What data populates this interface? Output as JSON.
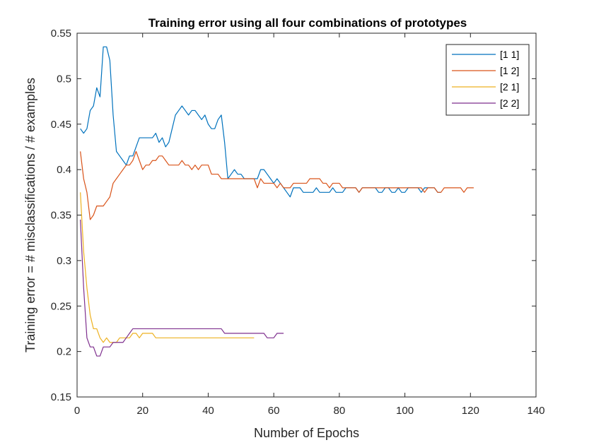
{
  "chart_data": {
    "type": "line",
    "title": "Training error using all four combinations of prototypes",
    "xlabel": "Number of Epochs",
    "ylabel": "Training error = # misclassifications / # examples",
    "xlim": [
      0,
      140
    ],
    "ylim": [
      0.15,
      0.55
    ],
    "xticks": [
      0,
      20,
      40,
      60,
      80,
      100,
      120,
      140
    ],
    "yticks": [
      0.15,
      0.2,
      0.25,
      0.3,
      0.35,
      0.4,
      0.45,
      0.5,
      0.55
    ],
    "xtick_labels": [
      "0",
      "20",
      "40",
      "60",
      "80",
      "100",
      "120",
      "140"
    ],
    "ytick_labels": [
      "0.15",
      "0.2",
      "0.25",
      "0.3",
      "0.35",
      "0.4",
      "0.45",
      "0.5",
      "0.55"
    ],
    "grid": false,
    "legend_position": "top-right",
    "series": [
      {
        "name": "[1 1]",
        "color": "#0072BD",
        "x": [
          1,
          2,
          3,
          4,
          5,
          6,
          7,
          8,
          9,
          10,
          11,
          12,
          13,
          14,
          15,
          16,
          17,
          18,
          19,
          20,
          21,
          22,
          23,
          24,
          25,
          26,
          27,
          28,
          29,
          30,
          31,
          32,
          33,
          34,
          35,
          36,
          37,
          38,
          39,
          40,
          41,
          42,
          43,
          44,
          45,
          46,
          47,
          48,
          49,
          50,
          51,
          52,
          53,
          54,
          55,
          56,
          57,
          58,
          59,
          60,
          61,
          62,
          63,
          64,
          65,
          66,
          67,
          68,
          69,
          70,
          71,
          72,
          73,
          74,
          75,
          76,
          77,
          78,
          79,
          80,
          81,
          82,
          83,
          84,
          85,
          86,
          87,
          88,
          89,
          90,
          91,
          92,
          93,
          94,
          95,
          96,
          97,
          98,
          99,
          100,
          101,
          102,
          103,
          104,
          105,
          106,
          107,
          108,
          109,
          110,
          111
        ],
        "values": [
          0.445,
          0.44,
          0.445,
          0.465,
          0.47,
          0.49,
          0.48,
          0.535,
          0.535,
          0.52,
          0.46,
          0.42,
          0.415,
          0.41,
          0.405,
          0.415,
          0.415,
          0.425,
          0.435,
          0.435,
          0.435,
          0.435,
          0.435,
          0.44,
          0.43,
          0.435,
          0.425,
          0.43,
          0.445,
          0.46,
          0.465,
          0.47,
          0.465,
          0.46,
          0.465,
          0.465,
          0.46,
          0.455,
          0.46,
          0.45,
          0.445,
          0.445,
          0.455,
          0.46,
          0.43,
          0.39,
          0.395,
          0.4,
          0.395,
          0.395,
          0.39,
          0.39,
          0.39,
          0.39,
          0.39,
          0.4,
          0.4,
          0.395,
          0.39,
          0.385,
          0.39,
          0.385,
          0.38,
          0.375,
          0.37,
          0.38,
          0.38,
          0.38,
          0.375,
          0.375,
          0.375,
          0.375,
          0.38,
          0.375,
          0.375,
          0.375,
          0.375,
          0.38,
          0.375,
          0.375,
          0.375,
          0.38,
          0.38,
          0.38,
          0.38,
          0.375,
          0.38,
          0.38,
          0.38,
          0.38,
          0.38,
          0.375,
          0.375,
          0.38,
          0.38,
          0.375,
          0.375,
          0.38,
          0.375,
          0.375,
          0.38,
          0.38,
          0.38,
          0.38,
          0.375,
          0.38,
          0.38,
          0.38,
          0.38,
          0.375,
          0.375
        ]
      },
      {
        "name": "[1 2]",
        "color": "#D95319",
        "x": [
          1,
          2,
          3,
          4,
          5,
          6,
          7,
          8,
          9,
          10,
          11,
          12,
          13,
          14,
          15,
          16,
          17,
          18,
          19,
          20,
          21,
          22,
          23,
          24,
          25,
          26,
          27,
          28,
          29,
          30,
          31,
          32,
          33,
          34,
          35,
          36,
          37,
          38,
          39,
          40,
          41,
          42,
          43,
          44,
          45,
          46,
          47,
          48,
          49,
          50,
          51,
          52,
          53,
          54,
          55,
          56,
          57,
          58,
          59,
          60,
          61,
          62,
          63,
          64,
          65,
          66,
          67,
          68,
          69,
          70,
          71,
          72,
          73,
          74,
          75,
          76,
          77,
          78,
          79,
          80,
          81,
          82,
          83,
          84,
          85,
          86,
          87,
          88,
          89,
          90,
          91,
          92,
          93,
          94,
          95,
          96,
          97,
          98,
          99,
          100,
          101,
          102,
          103,
          104,
          105,
          106,
          107,
          108,
          109,
          110,
          111,
          112,
          113,
          114,
          115,
          116,
          117,
          118,
          119,
          120,
          121
        ],
        "values": [
          0.42,
          0.39,
          0.375,
          0.345,
          0.35,
          0.36,
          0.36,
          0.36,
          0.365,
          0.37,
          0.385,
          0.39,
          0.395,
          0.4,
          0.405,
          0.405,
          0.41,
          0.42,
          0.41,
          0.4,
          0.405,
          0.405,
          0.41,
          0.41,
          0.415,
          0.415,
          0.41,
          0.405,
          0.405,
          0.405,
          0.405,
          0.41,
          0.405,
          0.405,
          0.4,
          0.405,
          0.4,
          0.405,
          0.405,
          0.405,
          0.395,
          0.395,
          0.395,
          0.39,
          0.39,
          0.39,
          0.39,
          0.39,
          0.39,
          0.39,
          0.39,
          0.39,
          0.39,
          0.39,
          0.38,
          0.39,
          0.385,
          0.385,
          0.385,
          0.385,
          0.38,
          0.385,
          0.38,
          0.38,
          0.38,
          0.385,
          0.385,
          0.385,
          0.385,
          0.385,
          0.39,
          0.39,
          0.39,
          0.39,
          0.385,
          0.385,
          0.38,
          0.385,
          0.385,
          0.385,
          0.38,
          0.38,
          0.38,
          0.38,
          0.38,
          0.375,
          0.38,
          0.38,
          0.38,
          0.38,
          0.38,
          0.38,
          0.38,
          0.38,
          0.38,
          0.38,
          0.38,
          0.38,
          0.38,
          0.38,
          0.38,
          0.38,
          0.38,
          0.38,
          0.38,
          0.375,
          0.38,
          0.38,
          0.38,
          0.375,
          0.375,
          0.38,
          0.38,
          0.38,
          0.38,
          0.38,
          0.38,
          0.375,
          0.38,
          0.38,
          0.38
        ]
      },
      {
        "name": "[2 1]",
        "color": "#EDB120",
        "x": [
          1,
          2,
          3,
          4,
          5,
          6,
          7,
          8,
          9,
          10,
          11,
          12,
          13,
          14,
          15,
          16,
          17,
          18,
          19,
          20,
          21,
          22,
          23,
          24,
          25,
          26,
          27,
          28,
          29,
          30,
          31,
          32,
          33,
          34,
          35,
          36,
          37,
          38,
          39,
          40,
          41,
          42,
          43,
          44,
          45,
          46,
          47,
          48,
          49,
          50,
          51,
          52,
          53,
          54
        ],
        "values": [
          0.375,
          0.31,
          0.27,
          0.24,
          0.225,
          0.225,
          0.215,
          0.21,
          0.215,
          0.21,
          0.21,
          0.21,
          0.215,
          0.215,
          0.215,
          0.215,
          0.22,
          0.22,
          0.215,
          0.22,
          0.22,
          0.22,
          0.22,
          0.215,
          0.215,
          0.215,
          0.215,
          0.215,
          0.215,
          0.215,
          0.215,
          0.215,
          0.215,
          0.215,
          0.215,
          0.215,
          0.215,
          0.215,
          0.215,
          0.215,
          0.215,
          0.215,
          0.215,
          0.215,
          0.215,
          0.215,
          0.215,
          0.215,
          0.215,
          0.215,
          0.215,
          0.215,
          0.215,
          0.215
        ]
      },
      {
        "name": "[2 2]",
        "color": "#7E2F8E",
        "x": [
          1,
          2,
          3,
          4,
          5,
          6,
          7,
          8,
          9,
          10,
          11,
          12,
          13,
          14,
          15,
          16,
          17,
          18,
          19,
          20,
          21,
          22,
          23,
          24,
          25,
          26,
          27,
          28,
          29,
          30,
          31,
          32,
          33,
          34,
          35,
          36,
          37,
          38,
          39,
          40,
          41,
          42,
          43,
          44,
          45,
          46,
          47,
          48,
          49,
          50,
          51,
          52,
          53,
          54,
          55,
          56,
          57,
          58,
          59,
          60,
          61,
          62,
          63
        ],
        "values": [
          0.345,
          0.27,
          0.215,
          0.205,
          0.205,
          0.195,
          0.195,
          0.205,
          0.205,
          0.205,
          0.21,
          0.21,
          0.21,
          0.21,
          0.215,
          0.22,
          0.225,
          0.225,
          0.225,
          0.225,
          0.225,
          0.225,
          0.225,
          0.225,
          0.225,
          0.225,
          0.225,
          0.225,
          0.225,
          0.225,
          0.225,
          0.225,
          0.225,
          0.225,
          0.225,
          0.225,
          0.225,
          0.225,
          0.225,
          0.225,
          0.225,
          0.225,
          0.225,
          0.225,
          0.22,
          0.22,
          0.22,
          0.22,
          0.22,
          0.22,
          0.22,
          0.22,
          0.22,
          0.22,
          0.22,
          0.22,
          0.22,
          0.215,
          0.215,
          0.215,
          0.22,
          0.22,
          0.22
        ]
      }
    ]
  }
}
